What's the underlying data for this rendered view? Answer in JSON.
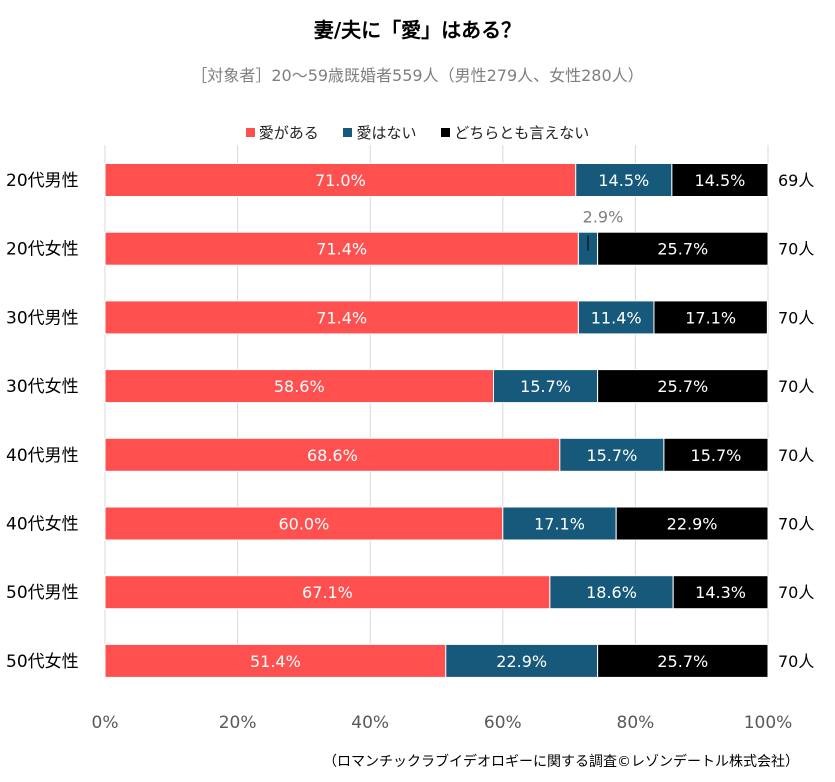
{
  "chart_data": {
    "type": "bar",
    "orientation": "horizontal",
    "stacked": true,
    "title": "妻/夫に「愛」はある？",
    "subtitle": "［対象者］20～59歳既婚者559人（男性279人、女性280人）",
    "xlabel": "",
    "ylabel": "",
    "xlim": [
      0,
      100
    ],
    "x_ticks": [
      "0%",
      "20%",
      "40%",
      "60%",
      "80%",
      "100%"
    ],
    "grid": true,
    "legend_position": "top-center",
    "categories": [
      "20代男性",
      "20代女性",
      "30代男性",
      "30代女性",
      "40代男性",
      "40代女性",
      "50代男性",
      "50代女性"
    ],
    "counts": [
      "69人",
      "70人",
      "70人",
      "70人",
      "70人",
      "70人",
      "70人",
      "70人"
    ],
    "series": [
      {
        "name": "愛がある",
        "color": "#ff5050",
        "values": [
          71.0,
          71.4,
          71.4,
          58.6,
          68.6,
          60.0,
          67.1,
          51.4
        ],
        "labels": [
          "71.0%",
          "71.4%",
          "71.4%",
          "58.6%",
          "68.6%",
          "60.0%",
          "67.1%",
          "51.4%"
        ]
      },
      {
        "name": "愛はない",
        "color": "#17597a",
        "values": [
          14.5,
          2.9,
          11.4,
          15.7,
          15.7,
          17.1,
          18.6,
          22.9
        ],
        "labels": [
          "14.5%",
          "2.9%",
          "11.4%",
          "15.7%",
          "15.7%",
          "17.1%",
          "18.6%",
          "22.9%"
        ]
      },
      {
        "name": "どちらとも言えない",
        "color": "#000000",
        "values": [
          14.5,
          25.7,
          17.1,
          25.7,
          15.7,
          22.9,
          14.3,
          25.7
        ],
        "labels": [
          "14.5%",
          "25.7%",
          "17.1%",
          "25.7%",
          "15.7%",
          "22.9%",
          "14.3%",
          "25.7%"
        ]
      }
    ],
    "callout_label_index": {
      "series": 1,
      "category": 1
    },
    "source": "（ロマンチックラブイデオロギーに関する調査©レゾンデートル株式会社）"
  }
}
